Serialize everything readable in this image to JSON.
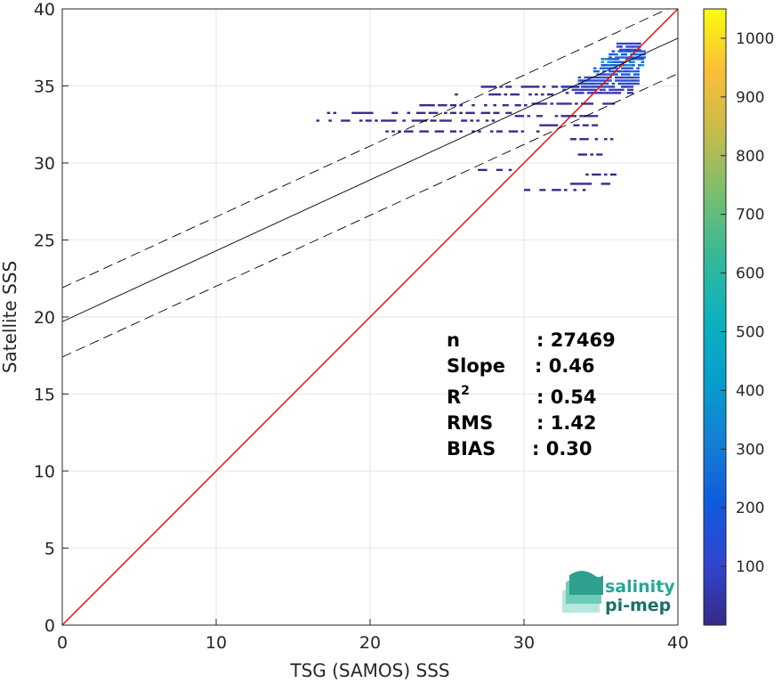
{
  "chart_data": {
    "type": "heatmap",
    "xlabel": "TSG (SAMOS) SSS",
    "ylabel": "Satellite SSS",
    "xlim": [
      0,
      40
    ],
    "ylim": [
      0,
      40
    ],
    "xticks": [
      0,
      10,
      20,
      30,
      40
    ],
    "yticks": [
      0,
      5,
      10,
      15,
      20,
      25,
      30,
      35,
      40
    ],
    "grid": true,
    "colorbar": {
      "min": 0,
      "max": 1050,
      "ticks": [
        100,
        200,
        300,
        400,
        500,
        600,
        700,
        800,
        900,
        1000
      ],
      "colormap": "parula"
    },
    "reference_lines": [
      {
        "name": "1:1",
        "slope": 1.0,
        "intercept": 0.0,
        "style": "solid",
        "color": "#ff0000"
      },
      {
        "name": "fit",
        "slope": 0.46,
        "intercept": 19.7,
        "style": "solid",
        "color": "#000000"
      },
      {
        "name": "fit_upper",
        "slope": 0.46,
        "intercept": 21.9,
        "style": "dashed",
        "color": "#000000"
      },
      {
        "name": "fit_lower",
        "slope": 0.46,
        "intercept": 17.4,
        "style": "dashed",
        "color": "#000000"
      }
    ],
    "density_bands": [
      {
        "x": [
          16.3,
          28.0
        ],
        "y": 32.7,
        "count": 3
      },
      {
        "x": [
          17.0,
          29.0
        ],
        "y": 33.2,
        "count": 2
      },
      {
        "x": [
          21.0,
          31.0
        ],
        "y": 32.0,
        "count": 2
      },
      {
        "x": [
          23.0,
          30.0
        ],
        "y": 33.7,
        "count": 3
      },
      {
        "x": [
          25.5,
          32.0
        ],
        "y": 34.4,
        "count": 3
      },
      {
        "x": [
          27.0,
          34.0
        ],
        "y": 34.9,
        "count": 5
      },
      {
        "x": [
          29.0,
          35.5
        ],
        "y": 33.0,
        "count": 10
      },
      {
        "x": [
          30.5,
          36.0
        ],
        "y": 33.8,
        "count": 15
      },
      {
        "x": [
          31.0,
          35.0
        ],
        "y": 32.4,
        "count": 5
      },
      {
        "x": [
          32.5,
          37.0
        ],
        "y": 34.7,
        "count": 30
      },
      {
        "x": [
          33.5,
          37.5
        ],
        "y": 35.3,
        "count": 60
      },
      {
        "x": [
          34.5,
          37.5
        ],
        "y": 35.9,
        "count": 90
      },
      {
        "x": [
          35.0,
          37.8
        ],
        "y": 36.5,
        "count": 120
      },
      {
        "x": [
          35.5,
          37.8
        ],
        "y": 37.0,
        "count": 100
      },
      {
        "x": [
          36.0,
          37.5
        ],
        "y": 37.5,
        "count": 50
      },
      {
        "x": [
          33.0,
          36.0
        ],
        "y": 31.5,
        "count": 3
      },
      {
        "x": [
          33.5,
          35.5
        ],
        "y": 30.5,
        "count": 2
      },
      {
        "x": [
          30.0,
          34.0
        ],
        "y": 28.2,
        "count": 3
      },
      {
        "x": [
          33.0,
          35.5
        ],
        "y": 28.6,
        "count": 2
      },
      {
        "x": [
          27.0,
          29.0
        ],
        "y": 29.5,
        "count": 1
      },
      {
        "x": [
          34.0,
          36.0
        ],
        "y": 29.2,
        "count": 1
      }
    ]
  },
  "stats": [
    {
      "label": "n",
      "sup": "",
      "value": ": 27469"
    },
    {
      "label": "Slope",
      "sup": "",
      "value": ": 0.46"
    },
    {
      "label": "R",
      "sup": "2",
      "value": ": 0.54"
    },
    {
      "label": "RMS",
      "sup": "",
      "value": ": 1.42"
    },
    {
      "label": "BIAS",
      "sup": "",
      "value": ": 0.30"
    }
  ],
  "logo": {
    "line1": "salinity",
    "line2": "pi-mep"
  },
  "colors": {
    "one_to_one": "#ff0000",
    "fit": "#000000",
    "logo_teal": "#26a69a",
    "logo_dark": "#1b6f6a"
  }
}
